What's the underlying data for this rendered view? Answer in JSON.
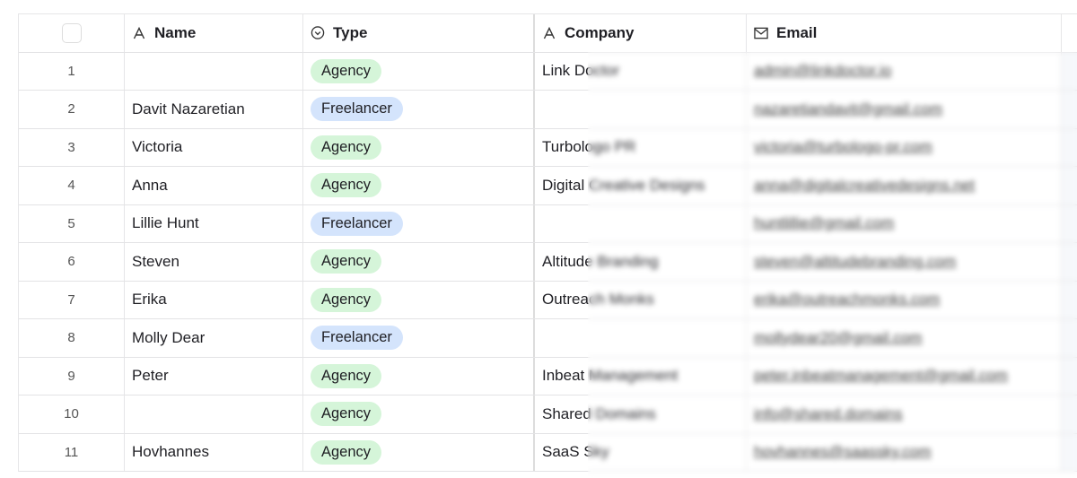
{
  "columns": {
    "name": "Name",
    "type": "Type",
    "company": "Company",
    "email": "Email"
  },
  "colors": {
    "agency_bg": "#d5f5d9",
    "freelancer_bg": "#d4e4fc"
  },
  "rows": [
    {
      "num": "1",
      "name": "",
      "type": "Agency",
      "company": "Link Doctor",
      "email": "admin@linkdoctor.io"
    },
    {
      "num": "2",
      "name": "Davit Nazaretian",
      "type": "Freelancer",
      "company": "",
      "email": "nazaretiandavit@gmail.com"
    },
    {
      "num": "3",
      "name": "Victoria",
      "type": "Agency",
      "company": "Turbologo PR",
      "email": "victoria@turbologo-pr.com"
    },
    {
      "num": "4",
      "name": "Anna",
      "type": "Agency",
      "company": "Digital Creative Designs",
      "email": "anna@digitalcreativedesigns.net"
    },
    {
      "num": "5",
      "name": "Lillie Hunt",
      "type": "Freelancer",
      "company": "",
      "email": "huntlillie@gmail.com"
    },
    {
      "num": "6",
      "name": "Steven",
      "type": "Agency",
      "company": "Altitude Branding",
      "email": "steven@altitudebranding.com"
    },
    {
      "num": "7",
      "name": "Erika",
      "type": "Agency",
      "company": "Outreach Monks",
      "email": "erika@outreachmonks.com"
    },
    {
      "num": "8",
      "name": "Molly Dear",
      "type": "Freelancer",
      "company": "",
      "email": "mollydear20@gmail.com"
    },
    {
      "num": "9",
      "name": "Peter",
      "type": "Agency",
      "company": "Inbeat Management",
      "email": "peter.inbeatmanagement@gmail.com"
    },
    {
      "num": "10",
      "name": "",
      "type": "Agency",
      "company": "Shared Domains",
      "email": "info@shared.domains"
    },
    {
      "num": "11",
      "name": "Hovhannes",
      "type": "Agency",
      "company": "SaaS Sky",
      "email": "hovhannes@saassky.com"
    }
  ]
}
